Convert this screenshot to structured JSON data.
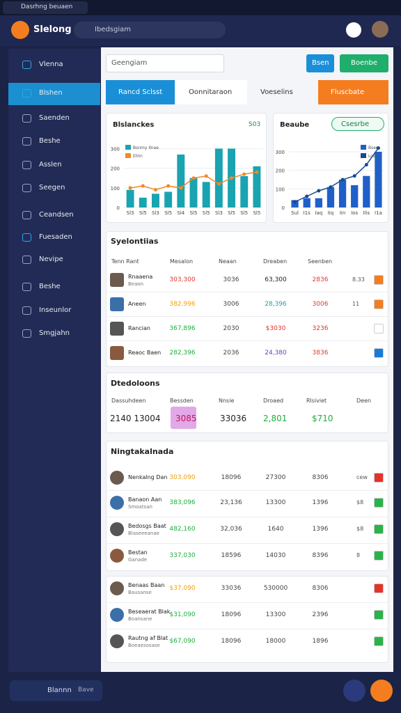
{
  "window": {
    "tab": "Dasrhng beuaen"
  },
  "header": {
    "brand": "Slelong",
    "search": "Ibedsgiam"
  },
  "sidebar": {
    "items": [
      "Vlenna",
      "Blshen",
      "Saenden",
      "Beshe",
      "Asslen",
      "Seegen",
      "Ceandsen",
      "Fuesaden",
      "Nevipe",
      "Beshe",
      "Inseunlor",
      "Smgjahn"
    ],
    "footer": "Blannn",
    "footer_sub": "Bave"
  },
  "toolbar": {
    "select": "Geengiam",
    "buttons": [
      "Bsen",
      "Boenbe"
    ]
  },
  "tabs": [
    "Rancd Sclsst",
    "Oonnitaraon",
    "Voeselins",
    "Fluscbate"
  ],
  "charts": [
    {
      "type": "bar",
      "title": "Blslanckes",
      "badge": "S03",
      "ylim": [
        0,
        330
      ],
      "yticks": [
        0,
        100,
        200,
        300
      ],
      "categories": [
        "Sl3",
        "Sl5",
        "Sl3",
        "Sl5",
        "Sl4",
        "Sl5",
        "Sl5",
        "Sl3",
        "Sl5",
        "Sl5",
        "Sl5"
      ],
      "series": [
        {
          "name": "Bsnmy Ilnae",
          "color": "#1aa3b0",
          "values": [
            90,
            50,
            70,
            80,
            270,
            150,
            130,
            300,
            300,
            160,
            210
          ]
        },
        {
          "name": "Ehtn",
          "color": "#f08a24",
          "type": "line",
          "values": [
            100,
            110,
            90,
            110,
            100,
            150,
            160,
            120,
            150,
            170,
            180
          ]
        }
      ]
    },
    {
      "type": "bar",
      "title": "Beaube",
      "button": "Csesrbe",
      "ylim": [
        0,
        330
      ],
      "yticks": [
        0,
        100,
        200,
        300
      ],
      "categories": [
        "Sul",
        "I1s",
        "Iaq",
        "Iiq",
        "Iin",
        "Ios",
        "Ilis",
        "I1a"
      ],
      "series": [
        {
          "name": "Bsen",
          "color": "#1f5fc9",
          "values": [
            40,
            50,
            50,
            110,
            150,
            120,
            170,
            300
          ]
        },
        {
          "name": "Loen",
          "color": "#174a8f",
          "type": "line",
          "values": [
            30,
            60,
            90,
            110,
            150,
            170,
            230,
            320
          ]
        }
      ]
    }
  ],
  "tables": [
    {
      "title": "Syelontiias",
      "columns": [
        "Tenn Rant",
        "Mesalon",
        "Neaan",
        "Dreaben",
        "Seenben"
      ],
      "rows": [
        [
          "Rnaaena",
          "Beaon",
          "303,300",
          "3036",
          "63,300",
          "2836",
          "8.33"
        ],
        [
          "Aneen",
          "",
          "382,996",
          "3006",
          "28,396",
          "3006",
          "11"
        ],
        [
          "Rancian",
          "",
          "367,896",
          "2030",
          "$3030",
          "3236",
          ""
        ],
        [
          "Reaoc Baen",
          "",
          "282,396",
          "2036",
          "24,380",
          "3836",
          ""
        ]
      ]
    },
    {
      "title": "Dtedoloons",
      "columns": [
        "Dassuhdeen",
        "Bessden",
        "Nnsie",
        "Droaed",
        "Rlsiviet",
        "Deen"
      ],
      "values": [
        "2140 13004",
        "3085",
        "33036",
        "2,801",
        "$710"
      ]
    },
    {
      "title": "Ningtakalnada",
      "rows": [
        [
          "Nenkalng Dan",
          "",
          "303,090",
          "18096",
          "27300",
          "8306",
          "cew"
        ],
        [
          "Banaon Aan",
          "Smoatsan",
          "383,096",
          "23,136",
          "13300",
          "1396",
          "$8"
        ],
        [
          "Bedosgs Baat",
          "Blaseeeanae",
          "482,160",
          "32,036",
          "1640",
          "1396",
          "$8"
        ],
        [
          "Bestan",
          "Ganade",
          "337,030",
          "18596",
          "14030",
          "8396",
          "8"
        ]
      ]
    },
    {
      "rows": [
        [
          "Benaas Baan",
          "Bausanse",
          "$37,090",
          "33036",
          "530000",
          "8306",
          ""
        ],
        [
          "Beseaerat Blak",
          "Boansane",
          "$31,090",
          "18096",
          "13300",
          "2396",
          ""
        ],
        [
          "Rautng af Blat",
          "Boeaesosase",
          "$67,090",
          "18096",
          "18000",
          "1896",
          ""
        ]
      ]
    }
  ]
}
